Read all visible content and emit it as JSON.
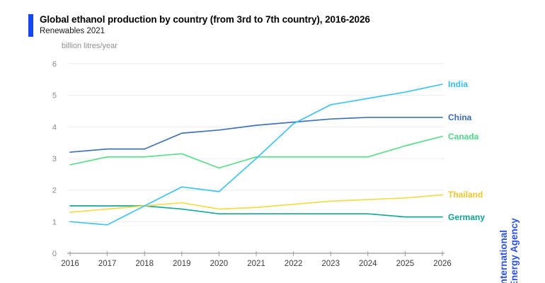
{
  "header": {
    "title": "Global ethanol production by country (from 3rd to 7th country), 2016-2026",
    "subtitle": "Renewables 2021"
  },
  "branding": {
    "line1": "International",
    "line2": "Energy Agency",
    "text_color": "#2a50e6",
    "accent_bar_color": "#1847f0"
  },
  "chart_data": {
    "type": "line",
    "title": "Global ethanol production by country (from 3rd to 7th country), 2016-2026",
    "subtitle": "Renewables 2021",
    "ylabel": "billion litres/year",
    "xlabel": "",
    "x": [
      2016,
      2017,
      2018,
      2019,
      2020,
      2021,
      2022,
      2023,
      2024,
      2025,
      2026
    ],
    "ylim": [
      0,
      6
    ],
    "yticks": [
      0,
      1,
      2,
      3,
      4,
      5,
      6
    ],
    "grid": "horizontal",
    "legend_position": "right-end-labels",
    "axis_color": "#9b9b9b",
    "grid_color": "#ececec",
    "ytick_label_color": "#8a8a8a",
    "xtick_label_color": "#3d3d3d",
    "series": [
      {
        "name": "India",
        "color": "#41c3f0",
        "label_color": "#35bdec",
        "values": [
          1.0,
          0.9,
          1.5,
          2.1,
          1.95,
          3.0,
          4.1,
          4.7,
          4.9,
          5.1,
          5.35
        ]
      },
      {
        "name": "China",
        "color": "#4272b6",
        "label_color": "#3a6cb4",
        "values": [
          3.2,
          3.3,
          3.3,
          3.8,
          3.9,
          4.05,
          4.15,
          4.25,
          4.3,
          4.3,
          4.3
        ]
      },
      {
        "name": "Canada",
        "color": "#5fdc8d",
        "label_color": "#4fd787",
        "values": [
          2.8,
          3.05,
          3.05,
          3.15,
          2.7,
          3.05,
          3.05,
          3.05,
          3.05,
          3.4,
          3.7
        ]
      },
      {
        "name": "Thailand",
        "color": "#f2dc4a",
        "label_color": "#eec727",
        "values": [
          1.3,
          1.4,
          1.5,
          1.6,
          1.4,
          1.45,
          1.55,
          1.65,
          1.7,
          1.75,
          1.85
        ]
      },
      {
        "name": "Germany",
        "color": "#16a89a",
        "label_color": "#0ca192",
        "values": [
          1.5,
          1.5,
          1.5,
          1.4,
          1.25,
          1.25,
          1.25,
          1.25,
          1.25,
          1.15,
          1.15
        ]
      }
    ]
  }
}
